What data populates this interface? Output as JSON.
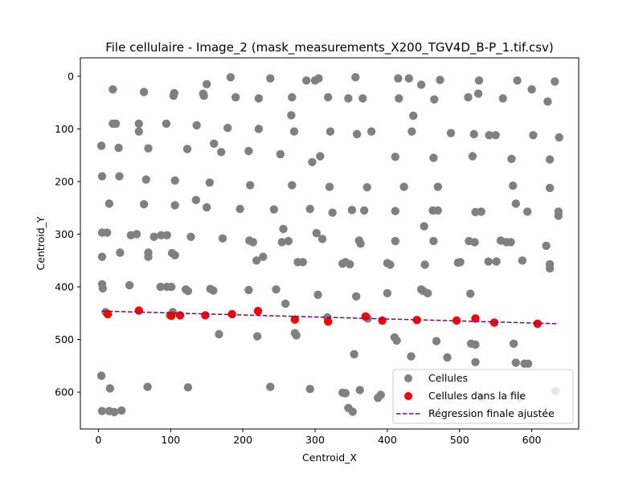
{
  "chart_data": {
    "type": "scatter",
    "title": "File cellulaire - Image_2 (mask_measurements_X200_TGV4D_B-P_1.tif.csv)",
    "xlabel": "Centroid_X",
    "ylabel": "Centroid_Y",
    "xlim": [
      -25,
      665
    ],
    "ylim": [
      670,
      -35
    ],
    "y_inverted": true,
    "x_ticks": [
      "0",
      "100",
      "200",
      "300",
      "400",
      "500",
      "600"
    ],
    "y_ticks": [
      "0",
      "100",
      "200",
      "300",
      "400",
      "500",
      "600"
    ],
    "grid": false,
    "legend_position": "lower-right",
    "series": [
      {
        "name": "Cellules",
        "kind": "scatter",
        "color": "#808080",
        "points": [
          [
            20,
            25
          ],
          [
            63,
            30
          ],
          [
            105,
            32
          ],
          [
            104,
            37
          ],
          [
            145,
            33
          ],
          [
            146,
            37
          ],
          [
            150,
            15
          ],
          [
            183,
            2
          ],
          [
            190,
            40
          ],
          [
            222,
            42
          ],
          [
            238,
            4
          ],
          [
            268,
            40
          ],
          [
            288,
            8
          ],
          [
            300,
            8
          ],
          [
            305,
            4
          ],
          [
            318,
            40
          ],
          [
            356,
            2
          ],
          [
            346,
            42
          ],
          [
            366,
            42
          ],
          [
            415,
            4
          ],
          [
            416,
            42
          ],
          [
            430,
            4
          ],
          [
            447,
            16
          ],
          [
            465,
            44
          ],
          [
            473,
            7
          ],
          [
            512,
            40
          ],
          [
            526,
            33
          ],
          [
            527,
            8
          ],
          [
            560,
            42
          ],
          [
            580,
            8
          ],
          [
            600,
            25
          ],
          [
            622,
            48
          ],
          [
            632,
            10
          ],
          [
            20,
            90
          ],
          [
            24,
            90
          ],
          [
            56,
            90
          ],
          [
            56,
            105
          ],
          [
            94,
            90
          ],
          [
            136,
            93
          ],
          [
            179,
            98
          ],
          [
            222,
            100
          ],
          [
            267,
            74
          ],
          [
            271,
            105
          ],
          [
            321,
            105
          ],
          [
            358,
            110
          ],
          [
            378,
            105
          ],
          [
            434,
            105
          ],
          [
            436,
            75
          ],
          [
            488,
            108
          ],
          [
            520,
            110
          ],
          [
            541,
            112
          ],
          [
            550,
            112
          ],
          [
            602,
            112
          ],
          [
            638,
            116
          ],
          [
            4,
            132
          ],
          [
            28,
            136
          ],
          [
            69,
            137
          ],
          [
            123,
            138
          ],
          [
            160,
            128
          ],
          [
            170,
            144
          ],
          [
            208,
            142
          ],
          [
            252,
            148
          ],
          [
            296,
            163
          ],
          [
            307,
            152
          ],
          [
            411,
            153
          ],
          [
            464,
            155
          ],
          [
            518,
            152
          ],
          [
            572,
            157
          ],
          [
            625,
            158
          ],
          [
            5,
            190
          ],
          [
            29,
            190
          ],
          [
            66,
            196
          ],
          [
            106,
            198
          ],
          [
            154,
            202
          ],
          [
            210,
            207
          ],
          [
            268,
            207
          ],
          [
            320,
            210
          ],
          [
            372,
            211
          ],
          [
            423,
            210
          ],
          [
            470,
            210
          ],
          [
            574,
            208
          ],
          [
            625,
            212
          ],
          [
            15,
            242
          ],
          [
            63,
            243
          ],
          [
            106,
            245
          ],
          [
            135,
            235
          ],
          [
            150,
            249
          ],
          [
            196,
            252
          ],
          [
            243,
            253
          ],
          [
            293,
            252
          ],
          [
            324,
            259
          ],
          [
            351,
            254
          ],
          [
            368,
            255
          ],
          [
            411,
            256
          ],
          [
            463,
            255
          ],
          [
            470,
            255
          ],
          [
            522,
            258
          ],
          [
            530,
            257
          ],
          [
            578,
            242
          ],
          [
            594,
            257
          ],
          [
            637,
            257
          ],
          [
            637,
            265
          ],
          [
            5,
            297
          ],
          [
            12,
            297
          ],
          [
            45,
            302
          ],
          [
            53,
            300
          ],
          [
            77,
            305
          ],
          [
            87,
            302
          ],
          [
            95,
            302
          ],
          [
            128,
            305
          ],
          [
            172,
            308
          ],
          [
            209,
            312
          ],
          [
            214,
            315
          ],
          [
            254,
            315
          ],
          [
            256,
            290
          ],
          [
            263,
            313
          ],
          [
            302,
            298
          ],
          [
            310,
            309
          ],
          [
            361,
            312
          ],
          [
            363,
            318
          ],
          [
            411,
            313
          ],
          [
            451,
            285
          ],
          [
            464,
            313
          ],
          [
            513,
            313
          ],
          [
            521,
            315
          ],
          [
            557,
            312
          ],
          [
            565,
            315
          ],
          [
            571,
            315
          ],
          [
            620,
            322
          ],
          [
            5,
            343
          ],
          [
            30,
            335
          ],
          [
            69,
            335
          ],
          [
            69,
            343
          ],
          [
            102,
            336
          ],
          [
            106,
            340
          ],
          [
            219,
            350
          ],
          [
            228,
            343
          ],
          [
            276,
            353
          ],
          [
            283,
            353
          ],
          [
            338,
            356
          ],
          [
            342,
            353
          ],
          [
            348,
            357
          ],
          [
            400,
            355
          ],
          [
            404,
            358
          ],
          [
            452,
            358
          ],
          [
            501,
            353
          ],
          [
            498,
            354
          ],
          [
            540,
            352
          ],
          [
            551,
            352
          ],
          [
            587,
            350
          ],
          [
            625,
            357
          ],
          [
            625,
            365
          ],
          [
            5,
            395
          ],
          [
            6,
            403
          ],
          [
            43,
            397
          ],
          [
            86,
            400
          ],
          [
            95,
            400
          ],
          [
            101,
            400
          ],
          [
            121,
            405
          ],
          [
            124,
            408
          ],
          [
            155,
            404
          ],
          [
            159,
            407
          ],
          [
            208,
            406
          ],
          [
            246,
            405
          ],
          [
            259,
            432
          ],
          [
            304,
            415
          ],
          [
            357,
            418
          ],
          [
            400,
            412
          ],
          [
            447,
            405
          ],
          [
            450,
            408
          ],
          [
            456,
            412
          ],
          [
            515,
            413
          ],
          [
            10,
            448
          ],
          [
            103,
            448
          ],
          [
            99,
            454
          ],
          [
            317,
            458
          ],
          [
            370,
            457
          ],
          [
            373,
            460
          ],
          [
            167,
            490
          ],
          [
            220,
            494
          ],
          [
            272,
            488
          ],
          [
            274,
            492
          ],
          [
            410,
            496
          ],
          [
            413,
            502
          ],
          [
            468,
            503
          ],
          [
            516,
            508
          ],
          [
            522,
            510
          ],
          [
            575,
            508
          ],
          [
            433,
            532
          ],
          [
            483,
            534
          ],
          [
            354,
            528
          ],
          [
            4,
            569
          ],
          [
            16,
            593
          ],
          [
            68,
            590
          ],
          [
            124,
            591
          ],
          [
            238,
            590
          ],
          [
            293,
            594
          ],
          [
            338,
            601
          ],
          [
            342,
            602
          ],
          [
            362,
            596
          ],
          [
            387,
            611
          ],
          [
            391,
            605
          ],
          [
            530,
            610
          ],
          [
            583,
            610
          ],
          [
            590,
            546
          ],
          [
            595,
            546
          ],
          [
            578,
            544
          ],
          [
            522,
            543
          ],
          [
            633,
            598
          ],
          [
            5,
            636
          ],
          [
            15,
            636
          ],
          [
            22,
            638
          ],
          [
            32,
            635
          ],
          [
            346,
            630
          ],
          [
            352,
            637
          ]
        ]
      },
      {
        "name": "Cellules dans la file",
        "kind": "scatter",
        "color": "#ff0000",
        "points": [
          [
            13,
            452
          ],
          [
            56,
            445
          ],
          [
            101,
            455
          ],
          [
            113,
            454
          ],
          [
            148,
            454
          ],
          [
            185,
            452
          ],
          [
            221,
            446
          ],
          [
            272,
            462
          ],
          [
            318,
            466
          ],
          [
            370,
            456
          ],
          [
            393,
            464
          ],
          [
            441,
            463
          ],
          [
            496,
            464
          ],
          [
            522,
            460
          ],
          [
            548,
            468
          ],
          [
            608,
            470
          ]
        ]
      },
      {
        "name": "Régression finale ajustée",
        "kind": "line",
        "color": "#800080",
        "dash": "dashed",
        "points": [
          [
            5,
            446
          ],
          [
            635,
            470
          ]
        ]
      }
    ]
  }
}
